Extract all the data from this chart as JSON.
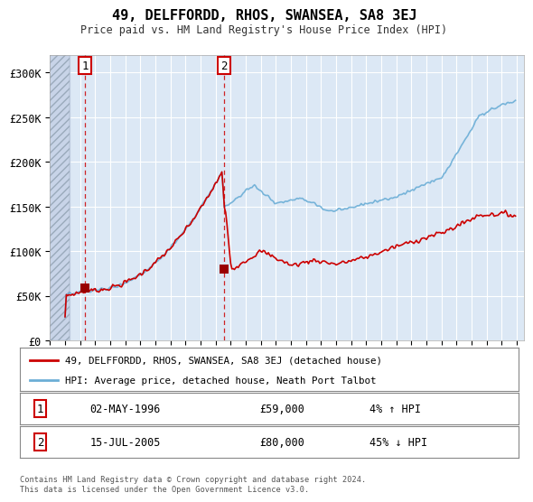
{
  "title": "49, DELFFORDD, RHOS, SWANSEA, SA8 3EJ",
  "subtitle": "Price paid vs. HM Land Registry's House Price Index (HPI)",
  "legend_line1": "49, DELFFORDD, RHOS, SWANSEA, SA8 3EJ (detached house)",
  "legend_line2": "HPI: Average price, detached house, Neath Port Talbot",
  "sale1_date": "02-MAY-1996",
  "sale1_price": "£59,000",
  "sale1_hpi": "4% ↑ HPI",
  "sale2_date": "15-JUL-2005",
  "sale2_price": "£80,000",
  "sale2_hpi": "45% ↓ HPI",
  "hpi_color": "#6baed6",
  "price_color": "#cc0000",
  "sale_marker_color": "#990000",
  "bg_color": "#dce8f5",
  "grid_color": "#ffffff",
  "footer": "Contains HM Land Registry data © Crown copyright and database right 2024.\nThis data is licensed under the Open Government Licence v3.0.",
  "ylim": [
    0,
    320000
  ],
  "yticks": [
    0,
    50000,
    100000,
    150000,
    200000,
    250000,
    300000
  ],
  "ytick_labels": [
    "£0",
    "£50K",
    "£100K",
    "£150K",
    "£200K",
    "£250K",
    "£300K"
  ]
}
